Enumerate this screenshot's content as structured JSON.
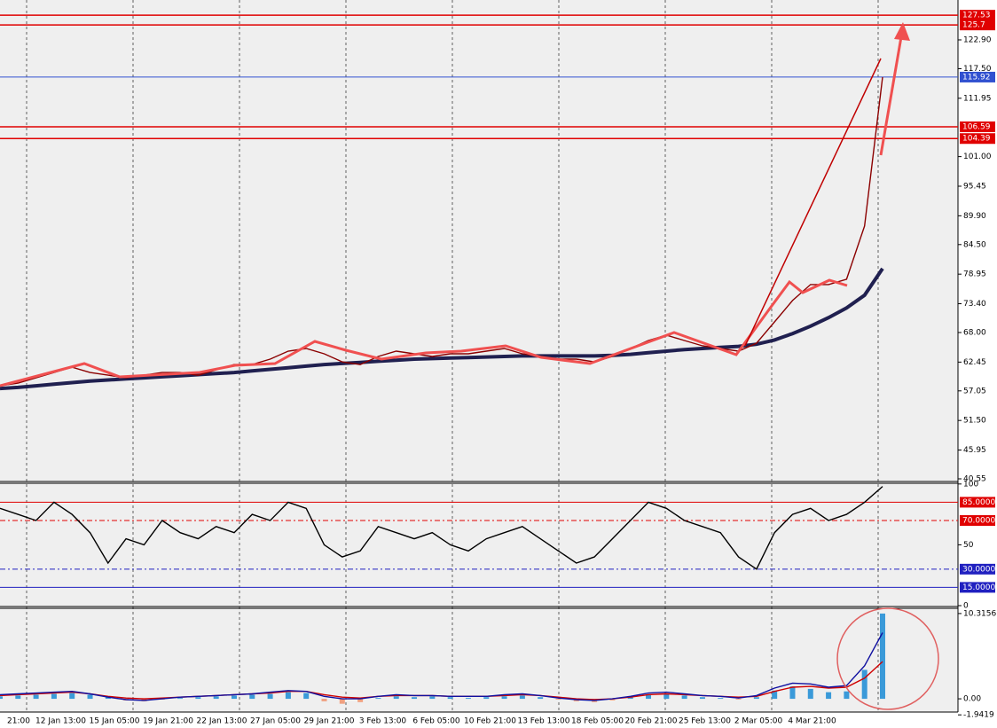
{
  "chart_data": [
    {
      "type": "line",
      "ylim": [
        40.05,
        130.05
      ],
      "yticks": [
        {
          "value": 122.9,
          "label": "122.90"
        },
        {
          "value": 117.5,
          "label": "117.50"
        },
        111.95,
        {
          "value": 101,
          "label": "101.00"
        },
        95.45,
        {
          "value": 89.9,
          "label": "89.90"
        },
        {
          "value": 84.5,
          "label": "84.50"
        },
        78.95,
        {
          "value": 73.4,
          "label": "73.40"
        },
        {
          "value": 68,
          "label": "68.00"
        },
        62.45,
        57.05,
        {
          "value": 51.5,
          "label": "51.50"
        },
        45.95,
        40.55
      ],
      "hlines": [
        {
          "value": 127.53,
          "color": "#e00000"
        },
        {
          "value": 125.7,
          "color": "#e00000"
        },
        {
          "value": 115.92,
          "color": "#3050d0"
        },
        {
          "value": 106.59,
          "color": "#e00000"
        },
        {
          "value": 104.39,
          "color": "#e00000"
        }
      ],
      "series": [
        {
          "color": "#202050",
          "values": [
            57.5,
            57.7,
            58,
            58.3,
            58.6,
            58.9,
            59.1,
            59.3,
            59.5,
            59.7,
            59.9,
            60.1,
            60.3,
            60.5,
            60.8,
            61.1,
            61.4,
            61.7,
            62,
            62.2,
            62.4,
            62.6,
            62.8,
            63,
            63.1,
            63.2,
            63.3,
            63.4,
            63.5,
            63.6,
            63.6,
            63.6,
            63.6,
            63.6,
            63.7,
            63.9,
            64.2,
            64.5,
            64.8,
            65,
            65.2,
            65.4,
            65.8,
            66.6,
            67.8,
            69.2,
            70.8,
            72.6,
            75,
            80
          ]
        },
        {
          "color": "#8b0000",
          "values": [
            58,
            58.5,
            59.5,
            60.5,
            61.5,
            60.5,
            60,
            59.5,
            60,
            60.5,
            60.5,
            60,
            61,
            62,
            62,
            63,
            64.5,
            65,
            64,
            62.5,
            62,
            63.5,
            64.5,
            64,
            63.5,
            64,
            64,
            64.5,
            65,
            64,
            63.5,
            63,
            63,
            62.5,
            63.5,
            65,
            66.5,
            67.5,
            66.5,
            65.5,
            65,
            64.5,
            66,
            70,
            74,
            77,
            77,
            78,
            88,
            115.92
          ]
        }
      ]
    },
    {
      "type": "line",
      "ylim": [
        0,
        100.6
      ],
      "yticks": [
        100,
        50,
        0
      ],
      "hlines": [
        {
          "value": 85,
          "label": "85.0000",
          "color": "#e00000"
        },
        {
          "value": 70,
          "label": "70.0000",
          "color": "#e00000"
        },
        {
          "value": 30,
          "label": "30.0000",
          "color": "#2020c0"
        },
        {
          "value": 15,
          "label": "15.0000",
          "color": "#2020c0"
        }
      ],
      "series": [
        {
          "color": "#000000",
          "values": [
            80,
            75,
            70,
            85,
            75,
            60,
            35,
            55,
            50,
            70,
            60,
            55,
            65,
            60,
            75,
            70,
            85,
            80,
            50,
            40,
            45,
            65,
            60,
            55,
            60,
            50,
            45,
            55,
            60,
            65,
            55,
            45,
            35,
            40,
            55,
            70,
            85,
            80,
            70,
            65,
            60,
            40,
            30,
            60,
            75,
            80,
            70,
            75,
            85,
            98
          ]
        }
      ]
    },
    {
      "type": "bar",
      "ylim": [
        -1.6,
        10.95
      ],
      "yticks": [
        {
          "value": 10.3156,
          "label": "10.3156"
        },
        {
          "value": 0,
          "label": "0.00"
        },
        -1.9419
      ],
      "values": [
        0.3,
        0.4,
        0.5,
        0.6,
        0.7,
        0.5,
        0.2,
        -0.2,
        -0.3,
        -0.1,
        0.1,
        0.2,
        0.3,
        0.4,
        0.5,
        0.6,
        0.8,
        0.7,
        -0.3,
        -0.6,
        -0.4,
        0.1,
        0.3,
        0.2,
        0.3,
        0.2,
        0.1,
        0.2,
        0.3,
        0.4,
        0.2,
        -0.1,
        -0.3,
        -0.4,
        -0.2,
        0.2,
        0.5,
        0.6,
        0.4,
        0.2,
        0.1,
        -0.1,
        0.2,
        1,
        1.5,
        1.2,
        0.8,
        0.9,
        3.5,
        10.3156
      ],
      "series": [
        {
          "color": "#d00000",
          "values": [
            0.4,
            0.5,
            0.6,
            0.7,
            0.8,
            0.6,
            0.3,
            0.1,
            0,
            0.1,
            0.2,
            0.3,
            0.4,
            0.5,
            0.6,
            0.7,
            0.9,
            0.9,
            0.5,
            0.2,
            0.1,
            0.3,
            0.4,
            0.4,
            0.4,
            0.3,
            0.3,
            0.3,
            0.4,
            0.5,
            0.4,
            0.2,
            0,
            -0.1,
            0,
            0.2,
            0.5,
            0.6,
            0.5,
            0.4,
            0.3,
            0.2,
            0.3,
            0.9,
            1.4,
            1.5,
            1.3,
            1.4,
            2.5,
            4.5
          ]
        },
        {
          "color": "#1010a0",
          "values": [
            0.5,
            0.6,
            0.7,
            0.8,
            0.9,
            0.6,
            0.2,
            -0.1,
            -0.2,
            0,
            0.2,
            0.3,
            0.4,
            0.5,
            0.6,
            0.8,
            1,
            0.9,
            0.3,
            0,
            0,
            0.3,
            0.5,
            0.4,
            0.4,
            0.3,
            0.3,
            0.3,
            0.5,
            0.6,
            0.4,
            0.1,
            -0.1,
            -0.2,
            0,
            0.3,
            0.7,
            0.8,
            0.6,
            0.4,
            0.3,
            0.1,
            0.4,
            1.3,
            1.9,
            1.8,
            1.4,
            1.6,
            4,
            8
          ]
        }
      ],
      "xtick_labels": [
        "21:00",
        "12 Jan 13:00",
        "15 Jan 05:00",
        "19 Jan 21:00",
        "22 Jan 13:00",
        "27 Jan 05:00",
        "29 Jan 21:00",
        "3 Feb 13:00",
        "6 Feb 05:00",
        "10 Feb 21:00",
        "13 Feb 13:00",
        "18 Feb 05:00",
        "20 Feb 21:00",
        "25 Feb 13:00",
        "2 Mar 05:00",
        "4 Mar 21:00"
      ]
    }
  ]
}
